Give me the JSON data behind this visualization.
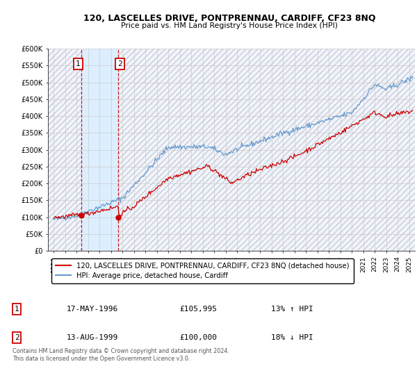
{
  "title": "120, LASCELLES DRIVE, PONTPRENNAU, CARDIFF, CF23 8NQ",
  "subtitle": "Price paid vs. HM Land Registry's House Price Index (HPI)",
  "red_label": "120, LASCELLES DRIVE, PONTPRENNAU, CARDIFF, CF23 8NQ (detached house)",
  "blue_label": "HPI: Average price, detached house, Cardiff",
  "transaction1_date": "17-MAY-1996",
  "transaction1_price": 105995,
  "transaction1_hpi": "13% ↑ HPI",
  "transaction2_date": "13-AUG-1999",
  "transaction2_price": 100000,
  "transaction2_hpi": "18% ↓ HPI",
  "footnote": "Contains HM Land Registry data © Crown copyright and database right 2024.\nThis data is licensed under the Open Government Licence v3.0.",
  "ylim": [
    0,
    600000
  ],
  "ytick_vals": [
    0,
    50000,
    100000,
    150000,
    200000,
    250000,
    300000,
    350000,
    400000,
    450000,
    500000,
    550000,
    600000
  ],
  "ytick_labels": [
    "£0",
    "£50K",
    "£100K",
    "£150K",
    "£200K",
    "£250K",
    "£300K",
    "£350K",
    "£400K",
    "£450K",
    "£500K",
    "£550K",
    "£600K"
  ],
  "xmin": 1993.5,
  "xmax": 2025.5,
  "t1_year": 1996.38,
  "t2_year": 1999.62,
  "red_color": "#cc0000",
  "blue_color": "#6699cc",
  "shading_color": "#ddeeff",
  "hatch_color": "#cccccc",
  "grid_color": "#cccccc",
  "bg_color": "#f0f4ff"
}
